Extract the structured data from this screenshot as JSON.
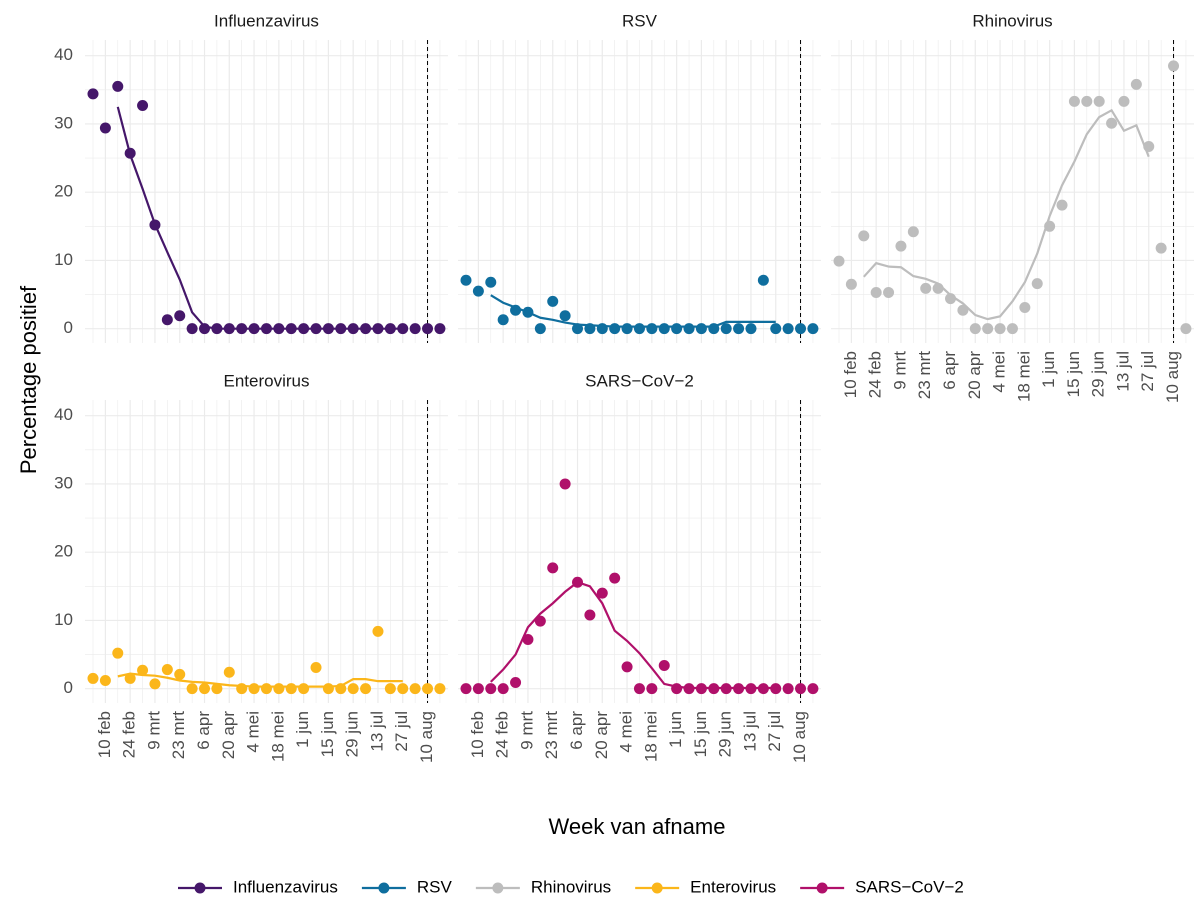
{
  "chart_data": {
    "type": "scatter",
    "x_label": "Week van afname",
    "y_label": "Percentage positief",
    "categories": [
      null,
      "10 feb",
      null,
      "24 feb",
      null,
      "9 mrt",
      null,
      "23 mrt",
      null,
      "6 apr",
      null,
      "20 apr",
      null,
      "4 mei",
      null,
      "18 mei",
      null,
      "1 jun",
      null,
      "15 jun",
      null,
      "29 jun",
      null,
      "13 jul",
      null,
      "27 jul",
      null,
      "10 aug",
      null
    ],
    "vline": "10 aug",
    "ylim": [
      -2.1,
      42.3
    ],
    "yticks": [
      0,
      10,
      20,
      30,
      40
    ],
    "grid": true,
    "legend": "bottom",
    "series": [
      {
        "name": "Influenzavirus",
        "color": "#45176a",
        "values": [
          34.4,
          29.4,
          35.5,
          25.7,
          32.7,
          15.2,
          1.3,
          1.9,
          0,
          0,
          0,
          0,
          0,
          0,
          0,
          0,
          0,
          0,
          0,
          0,
          0,
          0,
          0,
          0,
          0,
          0,
          0,
          0,
          0
        ],
        "trend": [
          null,
          null,
          32.5,
          25.5,
          20.5,
          15.3,
          11.2,
          7.2,
          2.4,
          0.3,
          0,
          0,
          0,
          0,
          0,
          0,
          0,
          0,
          0,
          0,
          0,
          0,
          0,
          0,
          0,
          0,
          null,
          null,
          null
        ]
      },
      {
        "name": "RSV",
        "color": "#0f6e9e",
        "values": [
          7.1,
          5.5,
          6.8,
          1.3,
          2.7,
          2.4,
          0,
          4.0,
          1.9,
          0,
          0,
          0,
          0,
          0,
          0,
          0,
          0,
          0,
          0,
          0,
          0,
          0,
          0,
          0,
          7.1,
          0,
          0,
          0,
          0
        ],
        "trend": [
          null,
          null,
          4.9,
          3.8,
          3.1,
          2.4,
          1.6,
          1.3,
          0.9,
          0.6,
          0.5,
          0.4,
          0.3,
          0.3,
          0.3,
          0.3,
          0.3,
          0.3,
          0.3,
          0.3,
          0.3,
          1.0,
          1.0,
          1.0,
          1.0,
          1.0,
          null,
          null,
          null
        ]
      },
      {
        "name": "Rhinovirus",
        "color": "#bdbdbd",
        "values": [
          9.9,
          6.5,
          13.6,
          5.3,
          5.3,
          12.1,
          14.2,
          5.9,
          5.9,
          4.4,
          2.7,
          0,
          0,
          0,
          0,
          3.1,
          6.6,
          15.0,
          18.1,
          33.3,
          33.3,
          33.3,
          30.1,
          33.3,
          35.8,
          26.7,
          11.8,
          38.5,
          0
        ],
        "trend": [
          null,
          null,
          7.6,
          9.6,
          9.1,
          9.0,
          7.7,
          7.3,
          6.6,
          4.9,
          3.7,
          2.0,
          1.4,
          1.8,
          4.0,
          6.8,
          11.0,
          16.5,
          21.0,
          24.5,
          28.5,
          31.0,
          32.0,
          29.0,
          29.8,
          25.2,
          null,
          null,
          null
        ]
      },
      {
        "name": "Enterovirus",
        "color": "#fbb61a",
        "values": [
          1.5,
          1.2,
          5.2,
          1.5,
          2.7,
          0.7,
          2.8,
          2.1,
          0,
          0,
          0,
          2.4,
          0,
          0,
          0,
          0,
          0,
          0,
          3.1,
          0,
          0,
          0,
          0,
          8.4,
          0,
          0,
          0,
          0,
          0
        ],
        "trend": [
          null,
          null,
          1.8,
          2.2,
          2.0,
          1.9,
          1.6,
          1.2,
          1.0,
          0.9,
          0.7,
          0.5,
          0.4,
          0.3,
          0.3,
          0.3,
          0.3,
          0.3,
          0.3,
          0.3,
          0.4,
          1.4,
          1.4,
          1.1,
          1.1,
          1.1,
          null,
          null,
          null
        ]
      },
      {
        "name": "SARS−CoV−2",
        "color": "#b0106a",
        "values": [
          0,
          0,
          0,
          0,
          0.9,
          7.2,
          9.9,
          17.7,
          30.0,
          15.6,
          10.8,
          14.0,
          16.2,
          3.2,
          0,
          0,
          3.4,
          0,
          0,
          0,
          0,
          0,
          0,
          0,
          0,
          0,
          0,
          0,
          0
        ],
        "trend": [
          null,
          null,
          1.0,
          2.8,
          5.0,
          9.0,
          11.0,
          12.5,
          14.2,
          15.6,
          15.0,
          12.5,
          8.5,
          7.0,
          5.2,
          3.0,
          0.7,
          0.3,
          0.1,
          0.1,
          0.1,
          0.1,
          0.1,
          0.1,
          0.1,
          0.1,
          null,
          null,
          null
        ]
      }
    ]
  }
}
